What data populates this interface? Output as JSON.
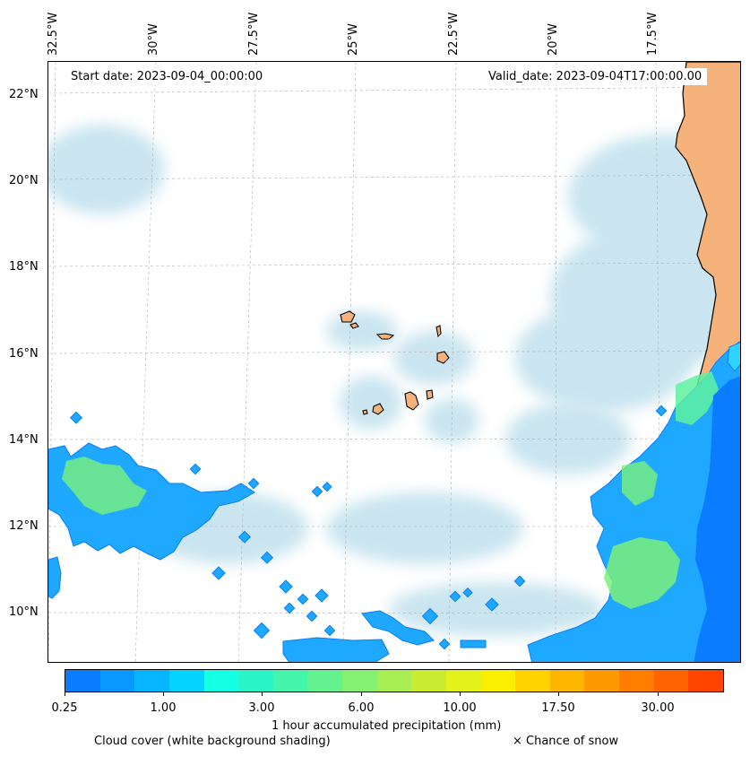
{
  "map": {
    "start_date_label": "Start date: 2023-09-04_00:00:00",
    "valid_date_label": "Valid_date: 2023-09-04T17:00:00.00",
    "longitude_labels": [
      "32.5°W",
      "30°W",
      "27.5°W",
      "25°W",
      "22.5°W",
      "20°W",
      "17.5°W"
    ],
    "latitude_labels": [
      "22°N",
      "20°N",
      "18°N",
      "16°N",
      "14°N",
      "12°N",
      "10°N"
    ],
    "colors": {
      "land": "#f5b27a",
      "land_outline": "#000000",
      "cloud": "#9fd0e3",
      "gridline": "#b0b0b0"
    }
  },
  "colorbar": {
    "label": "1 hour accumulated precipitation (mm)",
    "tick_labels": [
      "0.25",
      "1.00",
      "3.00",
      "6.00",
      "10.00",
      "17.50",
      "30.00"
    ],
    "colors": [
      "#0a7cff",
      "#0898ff",
      "#06b4ff",
      "#05d2ff",
      "#14ffe4",
      "#2af5c8",
      "#45f5ab",
      "#63f28f",
      "#86f070",
      "#a8ee52",
      "#c9ec33",
      "#e3f21a",
      "#fbef00",
      "#ffd300",
      "#ffb600",
      "#ff9900",
      "#ff7e00",
      "#ff6400",
      "#ff4400"
    ]
  },
  "legend": {
    "cloud_cover_label": "Cloud cover (white background shading)",
    "snow_label": "× Chance of snow"
  }
}
